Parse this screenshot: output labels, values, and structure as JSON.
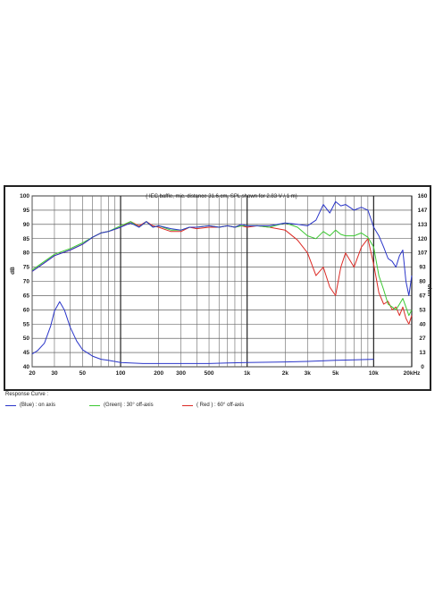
{
  "chart_data": {
    "type": "line",
    "title": "",
    "caption": "( IEC baffle, mic. distance 31.6 cm, SPL shown for 2.83 V / 1 m)",
    "xlabel": "",
    "ylabel_left": "dB",
    "ylabel_right": "ohm",
    "x_scale": "log",
    "xlim": [
      20,
      20000
    ],
    "ylim_left": [
      40,
      100
    ],
    "ylim_right": [
      0,
      160
    ],
    "x_ticks": [
      20,
      30,
      50,
      100,
      200,
      300,
      500,
      1000,
      2000,
      3000,
      5000,
      10000,
      20000
    ],
    "x_tick_labels": [
      "20",
      "30",
      "50",
      "100",
      "200",
      "300",
      "500",
      "1k",
      "2k",
      "3k",
      "5k",
      "10k",
      "20kHz"
    ],
    "y_left_ticks": [
      40,
      45,
      50,
      55,
      60,
      65,
      70,
      75,
      80,
      85,
      90,
      95,
      100
    ],
    "y_right_ticks": [
      "0",
      "13",
      "27",
      "40",
      "53",
      "67",
      "80",
      "93",
      "107",
      "120",
      "133",
      "147",
      "160"
    ],
    "grid": true,
    "legend_title": "Response Curve :",
    "series": [
      {
        "name": "(Blue) : on axis",
        "color": "#2a35c9",
        "axis": "left",
        "x": [
          20,
          25,
          30,
          40,
          50,
          60,
          70,
          80,
          100,
          120,
          140,
          160,
          180,
          200,
          250,
          300,
          350,
          400,
          500,
          600,
          700,
          800,
          900,
          1000,
          1200,
          1500,
          2000,
          2500,
          3000,
          3500,
          4000,
          4500,
          5000,
          5500,
          6000,
          7000,
          8000,
          9000,
          10000,
          11000,
          12000,
          13000,
          14000,
          15000,
          16000,
          17000,
          18000,
          19000,
          20000
        ],
        "values": [
          73.5,
          76.5,
          79,
          81,
          83,
          85.5,
          87,
          87.5,
          89,
          90.5,
          89,
          91,
          89,
          89.5,
          88.5,
          88,
          89,
          89,
          89.5,
          89,
          89.5,
          89,
          90,
          89.5,
          89.5,
          89.5,
          90.5,
          90,
          89.5,
          91.5,
          97,
          94,
          98,
          96.5,
          97,
          95,
          96,
          95,
          89,
          86,
          82,
          78,
          77,
          75,
          79,
          81,
          70,
          65,
          72
        ]
      },
      {
        "name": "(Green) : 30° off-axis",
        "color": "#3cc832",
        "axis": "left",
        "x": [
          20,
          25,
          30,
          40,
          50,
          60,
          70,
          80,
          100,
          120,
          140,
          160,
          180,
          200,
          250,
          300,
          350,
          400,
          500,
          600,
          700,
          800,
          900,
          1000,
          1200,
          1500,
          2000,
          2500,
          3000,
          3500,
          4000,
          4500,
          5000,
          5500,
          6000,
          7000,
          8000,
          9000,
          10000,
          11000,
          12000,
          13000,
          14000,
          15000,
          16000,
          17000,
          18000,
          19000,
          20000
        ],
        "values": [
          74,
          77,
          79.5,
          81.5,
          83.5,
          85.5,
          87,
          87.5,
          89.5,
          91,
          89,
          91,
          89,
          89.5,
          88,
          88,
          89,
          89,
          89.5,
          89,
          89.5,
          89,
          89.5,
          89.5,
          89.5,
          89,
          90.5,
          89,
          86,
          85,
          87.5,
          86,
          88,
          86.5,
          86,
          86,
          87,
          85.5,
          82,
          72,
          67,
          62,
          61,
          60,
          62,
          64,
          61,
          58,
          60
        ]
      },
      {
        "name": "( Red ) : 60° off-axis",
        "color": "#dc2a25",
        "axis": "left",
        "x": [
          20,
          25,
          30,
          40,
          50,
          60,
          70,
          80,
          100,
          120,
          140,
          160,
          180,
          200,
          250,
          300,
          350,
          400,
          500,
          600,
          700,
          800,
          900,
          1000,
          1200,
          1500,
          2000,
          2500,
          3000,
          3500,
          4000,
          4500,
          5000,
          5500,
          6000,
          7000,
          8000,
          9000,
          10000,
          11000,
          12000,
          13000,
          14000,
          15000,
          16000,
          17000,
          18000,
          19000,
          20000
        ],
        "values": [
          73.5,
          76.5,
          79,
          81,
          83,
          85.5,
          87,
          87.5,
          89,
          91,
          89.5,
          91,
          89.5,
          89,
          87.5,
          87.5,
          89,
          88.5,
          89,
          89,
          89.5,
          89,
          89.5,
          89,
          89.5,
          89,
          88,
          84.5,
          80,
          72,
          75,
          68,
          65,
          75,
          80,
          75,
          82,
          85,
          76,
          66,
          62,
          63,
          60,
          61,
          58,
          61,
          57,
          55,
          58
        ]
      },
      {
        "name": "impedance",
        "color": "#2a35c9",
        "axis": "right",
        "x": [
          20,
          22,
          25,
          28,
          30,
          33,
          36,
          40,
          45,
          50,
          60,
          70,
          80,
          100,
          150,
          200,
          300,
          500,
          700,
          1000,
          2000,
          3000,
          5000,
          7000,
          10000
        ],
        "values": [
          12,
          15,
          22,
          38,
          52,
          61,
          53,
          37,
          24,
          16,
          10,
          7,
          6,
          4,
          3,
          3,
          3,
          3,
          3.5,
          4,
          4.5,
          5,
          6,
          6.5,
          7
        ]
      }
    ]
  }
}
